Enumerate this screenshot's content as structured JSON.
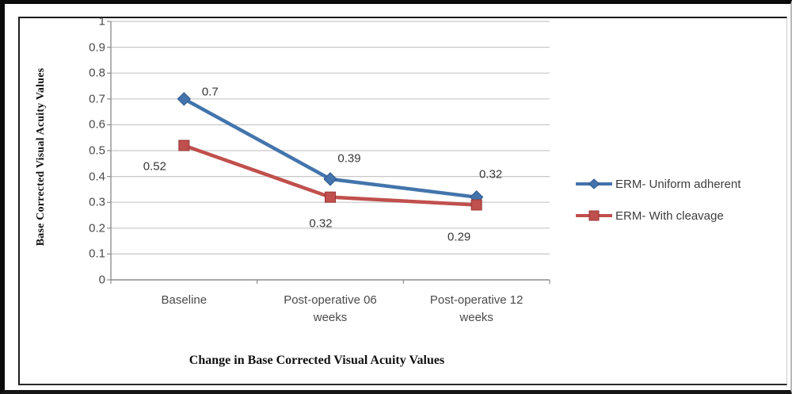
{
  "chart_data": {
    "type": "line",
    "title": "",
    "categories": [
      "Baseline",
      "Post-operative 06 weeks",
      "Post-operative 12 weeks"
    ],
    "series": [
      {
        "name": "ERM- Uniform adherent",
        "values": [
          0.7,
          0.39,
          0.32
        ],
        "marker": "diamond",
        "color": "#4374AC",
        "marker_edge": "#2F578C"
      },
      {
        "name": "ERM- With cleavage",
        "values": [
          0.52,
          0.32,
          0.29
        ],
        "marker": "square",
        "color": "#C0504D",
        "marker_edge": "#993634"
      }
    ],
    "data_labels": [
      [
        "0.7",
        "0.39",
        "0.32"
      ],
      [
        "0.52",
        "0.32",
        "0.29"
      ]
    ],
    "xlabel": "Change in Base Corrected Visual Acuity Values",
    "ylabel": "Base Corrected Visual Acuity Values",
    "ylim": [
      0,
      1
    ],
    "yticks": [
      "0",
      "0.1",
      "0.2",
      "0.3",
      "0.4",
      "0.5",
      "0.6",
      "0.7",
      "0.8",
      "0.9",
      "1"
    ],
    "grid": "horizontal gridlines on",
    "legend_position": "right",
    "colors": {
      "gridline": "#c7c7c7",
      "axis": "#8f8f8f",
      "tick_text": "#4a4a4a",
      "frame": "#0b0b0b"
    }
  }
}
